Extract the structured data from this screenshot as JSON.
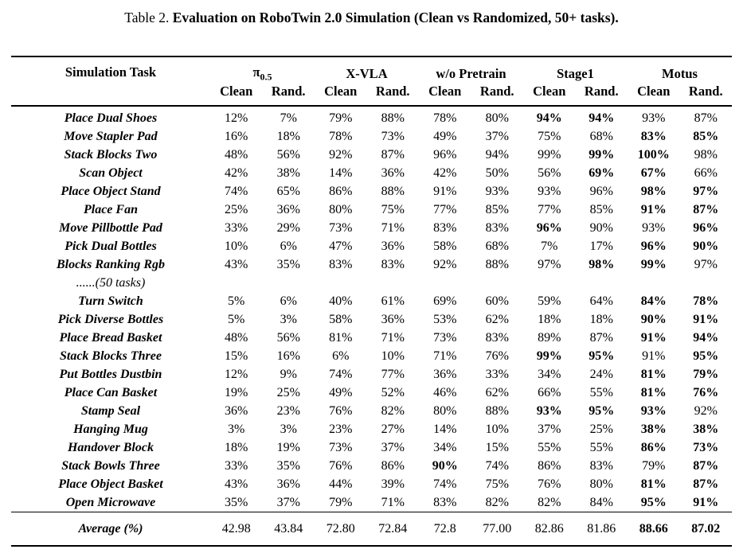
{
  "colors": {
    "text": "#000000",
    "background": "#ffffff",
    "rule": "#000000"
  },
  "caption": {
    "prefix": "Table 2. ",
    "title": "Evaluation on RoboTwin 2.0 Simulation (Clean vs Randomized, 50+ tasks)."
  },
  "table": {
    "task_header": "Simulation Task",
    "groups": [
      {
        "label": "π",
        "sub": "0.5"
      },
      {
        "label": "X-VLA"
      },
      {
        "label": "w/o Pretrain"
      },
      {
        "label": "Stage1"
      },
      {
        "label": "Motus"
      }
    ],
    "subheaders": [
      "Clean",
      "Rand."
    ],
    "rows": [
      {
        "task": "Place Dual Shoes",
        "values": [
          "12%",
          "7%",
          "79%",
          "88%",
          "78%",
          "80%",
          "94%",
          "94%",
          "93%",
          "87%"
        ],
        "bold": [
          6,
          7
        ]
      },
      {
        "task": "Move Stapler Pad",
        "values": [
          "16%",
          "18%",
          "78%",
          "73%",
          "49%",
          "37%",
          "75%",
          "68%",
          "83%",
          "85%"
        ],
        "bold": [
          8,
          9
        ]
      },
      {
        "task": "Stack Blocks Two",
        "values": [
          "48%",
          "56%",
          "92%",
          "87%",
          "96%",
          "94%",
          "99%",
          "99%",
          "100%",
          "98%"
        ],
        "bold": [
          7,
          8
        ]
      },
      {
        "task": "Scan Object",
        "values": [
          "42%",
          "38%",
          "14%",
          "36%",
          "42%",
          "50%",
          "56%",
          "69%",
          "67%",
          "66%"
        ],
        "bold": [
          7,
          8
        ]
      },
      {
        "task": "Place Object Stand",
        "values": [
          "74%",
          "65%",
          "86%",
          "88%",
          "91%",
          "93%",
          "93%",
          "96%",
          "98%",
          "97%"
        ],
        "bold": [
          8,
          9
        ]
      },
      {
        "task": "Place Fan",
        "values": [
          "25%",
          "36%",
          "80%",
          "75%",
          "77%",
          "85%",
          "77%",
          "85%",
          "91%",
          "87%"
        ],
        "bold": [
          8,
          9
        ]
      },
      {
        "task": "Move Pillbottle Pad",
        "values": [
          "33%",
          "29%",
          "73%",
          "71%",
          "83%",
          "83%",
          "96%",
          "90%",
          "93%",
          "96%"
        ],
        "bold": [
          6,
          9
        ]
      },
      {
        "task": "Pick Dual Bottles",
        "values": [
          "10%",
          "6%",
          "47%",
          "36%",
          "58%",
          "68%",
          "7%",
          "17%",
          "96%",
          "90%"
        ],
        "bold": [
          8,
          9
        ]
      },
      {
        "task": "Blocks Ranking Rgb",
        "values": [
          "43%",
          "35%",
          "83%",
          "83%",
          "92%",
          "88%",
          "97%",
          "98%",
          "99%",
          "97%"
        ],
        "bold": [
          7,
          8
        ]
      },
      {
        "task": "......(50 tasks)",
        "values": [
          "",
          "",
          "",
          "",
          "",
          "",
          "",
          "",
          "",
          ""
        ],
        "bold": [],
        "ellipsis": true
      },
      {
        "task": "Turn Switch",
        "values": [
          "5%",
          "6%",
          "40%",
          "61%",
          "69%",
          "60%",
          "59%",
          "64%",
          "84%",
          "78%"
        ],
        "bold": [
          8,
          9
        ]
      },
      {
        "task": "Pick Diverse Bottles",
        "values": [
          "5%",
          "3%",
          "58%",
          "36%",
          "53%",
          "62%",
          "18%",
          "18%",
          "90%",
          "91%"
        ],
        "bold": [
          8,
          9
        ]
      },
      {
        "task": "Place Bread Basket",
        "values": [
          "48%",
          "56%",
          "81%",
          "71%",
          "73%",
          "83%",
          "89%",
          "87%",
          "91%",
          "94%"
        ],
        "bold": [
          8,
          9
        ]
      },
      {
        "task": "Stack Blocks Three",
        "values": [
          "15%",
          "16%",
          "6%",
          "10%",
          "71%",
          "76%",
          "99%",
          "95%",
          "91%",
          "95%"
        ],
        "bold": [
          6,
          7,
          9
        ]
      },
      {
        "task": "Put Bottles Dustbin",
        "values": [
          "12%",
          "9%",
          "74%",
          "77%",
          "36%",
          "33%",
          "34%",
          "24%",
          "81%",
          "79%"
        ],
        "bold": [
          8,
          9
        ]
      },
      {
        "task": "Place Can Basket",
        "values": [
          "19%",
          "25%",
          "49%",
          "52%",
          "46%",
          "62%",
          "66%",
          "55%",
          "81%",
          "76%"
        ],
        "bold": [
          8,
          9
        ]
      },
      {
        "task": "Stamp Seal",
        "values": [
          "36%",
          "23%",
          "76%",
          "82%",
          "80%",
          "88%",
          "93%",
          "95%",
          "93%",
          "92%"
        ],
        "bold": [
          6,
          7,
          8
        ]
      },
      {
        "task": "Hanging Mug",
        "values": [
          "3%",
          "3%",
          "23%",
          "27%",
          "14%",
          "10%",
          "37%",
          "25%",
          "38%",
          "38%"
        ],
        "bold": [
          8,
          9
        ]
      },
      {
        "task": "Handover Block",
        "values": [
          "18%",
          "19%",
          "73%",
          "37%",
          "34%",
          "15%",
          "55%",
          "55%",
          "86%",
          "73%"
        ],
        "bold": [
          8,
          9
        ]
      },
      {
        "task": "Stack Bowls Three",
        "values": [
          "33%",
          "35%",
          "76%",
          "86%",
          "90%",
          "74%",
          "86%",
          "83%",
          "79%",
          "87%"
        ],
        "bold": [
          4,
          9
        ]
      },
      {
        "task": "Place Object Basket",
        "values": [
          "43%",
          "36%",
          "44%",
          "39%",
          "74%",
          "75%",
          "76%",
          "80%",
          "81%",
          "87%"
        ],
        "bold": [
          8,
          9
        ]
      },
      {
        "task": "Open Microwave",
        "values": [
          "35%",
          "37%",
          "79%",
          "71%",
          "83%",
          "82%",
          "82%",
          "84%",
          "95%",
          "91%"
        ],
        "bold": [
          8,
          9
        ]
      }
    ],
    "footer": {
      "label": "Average (%)",
      "values": [
        "42.98",
        "43.84",
        "72.80",
        "72.84",
        "72.8",
        "77.00",
        "82.86",
        "81.86",
        "88.66",
        "87.02"
      ],
      "bold": [
        8,
        9
      ]
    }
  }
}
